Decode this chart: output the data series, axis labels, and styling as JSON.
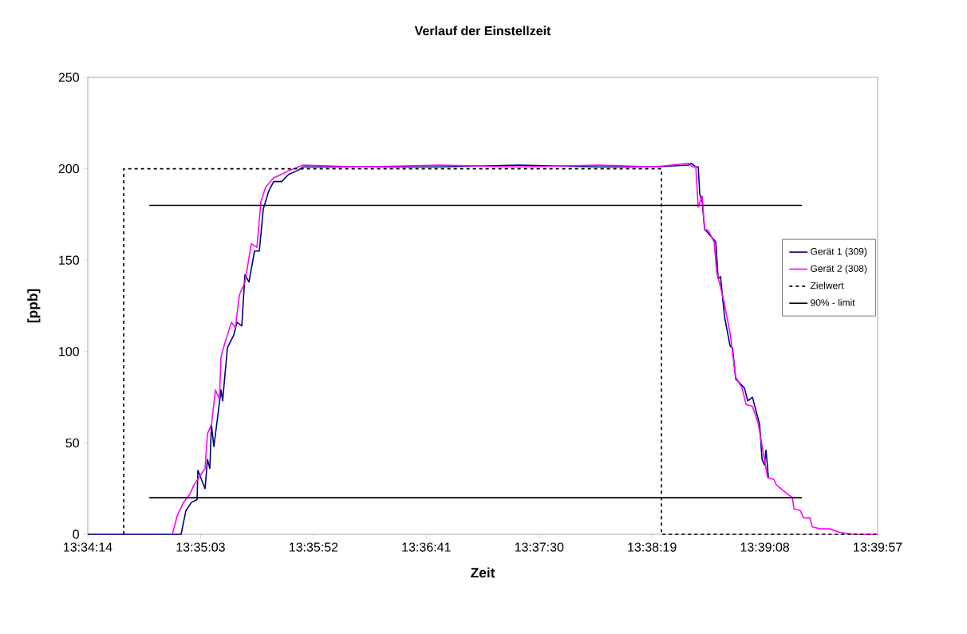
{
  "chart_data": {
    "type": "line",
    "title": "Verlauf der Einstellzeit",
    "xlabel": "Zeit",
    "ylabel": "[ppb]",
    "xlim": [
      13.570556,
      13.665833
    ],
    "ylim": [
      0,
      250
    ],
    "xticks": [
      {
        "value": 13.570556,
        "label": "13:34:14"
      },
      {
        "value": 13.584167,
        "label": "13:35:03"
      },
      {
        "value": 13.597778,
        "label": "13:35:52"
      },
      {
        "value": 13.611389,
        "label": "13:36:41"
      },
      {
        "value": 13.625,
        "label": "13:37:30"
      },
      {
        "value": 13.638611,
        "label": "13:38:19"
      },
      {
        "value": 13.652222,
        "label": "13:39:08"
      },
      {
        "value": 13.665833,
        "label": "13:39:57"
      }
    ],
    "yticks": [
      0,
      50,
      100,
      150,
      200,
      250
    ],
    "grid": false,
    "legend": "right",
    "marker": "none",
    "series": [
      {
        "name": "Gerät 1 (309)",
        "color": "#000080",
        "line_style": "solid",
        "x": [
          13.570556,
          13.581817,
          13.582395,
          13.583069,
          13.583742,
          13.583839,
          13.584705,
          13.584994,
          13.585282,
          13.585475,
          13.585764,
          13.586245,
          13.58663,
          13.586822,
          13.5874,
          13.58817,
          13.588555,
          13.589132,
          13.589517,
          13.589999,
          13.590672,
          13.59125,
          13.591731,
          13.592405,
          13.592982,
          13.593945,
          13.594811,
          13.59587,
          13.596544,
          13.603281,
          13.612906,
          13.622531,
          13.632156,
          13.638894,
          13.643032,
          13.643321,
          13.643899,
          13.644187,
          13.64438,
          13.644669,
          13.644957,
          13.646305,
          13.646594,
          13.646882,
          13.647364,
          13.648037,
          13.648326,
          13.648711,
          13.64977,
          13.650155,
          13.650732,
          13.651599,
          13.651887,
          13.652176,
          13.652369,
          13.652657
        ],
        "values": [
          0,
          0,
          13,
          17.5,
          19,
          35,
          25,
          41,
          36,
          60,
          48,
          65,
          79,
          73,
          102,
          109,
          116,
          114,
          142,
          138,
          155,
          155,
          178,
          188,
          193,
          193,
          197,
          199,
          201,
          201,
          201,
          202,
          201,
          201,
          202,
          203,
          201,
          201,
          186,
          182,
          167,
          160,
          140,
          141,
          119,
          103,
          102,
          85,
          80,
          73,
          75,
          60,
          41,
          38,
          46,
          31
        ]
      },
      {
        "name": "Gerät 2 (308)",
        "color": "#ff00ff",
        "line_style": "solid",
        "x": [
          13.580759,
          13.581336,
          13.582106,
          13.582876,
          13.583357,
          13.584705,
          13.584994,
          13.585475,
          13.585956,
          13.586437,
          13.58663,
          13.586919,
          13.587881,
          13.588362,
          13.588844,
          13.589517,
          13.590287,
          13.590961,
          13.591442,
          13.59202,
          13.592982,
          13.593945,
          13.594811,
          13.596544,
          13.603281,
          13.612906,
          13.622531,
          13.632156,
          13.638894,
          13.643032,
          13.643514,
          13.643899,
          13.644187,
          13.644669,
          13.644957,
          13.645439,
          13.646112,
          13.646401,
          13.647267,
          13.648037,
          13.648711,
          13.649481,
          13.649962,
          13.650732,
          13.651406,
          13.652561,
          13.653331,
          13.65362,
          13.654967,
          13.655545,
          13.655737,
          13.656507,
          13.656892,
          13.657662,
          13.657951,
          13.658914,
          13.660069,
          13.66132,
          13.662956,
          13.665833
        ],
        "values": [
          0,
          10,
          17.5,
          22,
          27,
          36,
          55,
          60,
          79,
          74,
          97,
          102,
          116,
          113,
          131,
          138,
          159,
          157,
          182,
          190,
          195,
          197,
          199,
          202,
          201,
          202,
          201,
          202,
          201,
          203,
          201,
          201,
          179,
          185,
          167,
          166,
          160,
          144,
          128,
          110,
          86,
          80,
          71,
          70,
          61,
          31,
          30,
          27,
          22,
          20,
          14,
          13,
          9,
          9,
          4,
          3,
          3,
          1,
          0,
          0
        ]
      },
      {
        "name": "Zielwert",
        "color": "#000000",
        "line_style": "dashed",
        "x": [
          13.574889,
          13.574889,
          13.639754,
          13.639754,
          13.665833
        ],
        "values": [
          0,
          200,
          200,
          0,
          0
        ]
      },
      {
        "name": "90% - limit",
        "color": "#000000",
        "line_style": "solid",
        "x": [
          13.577972,
          13.656696
        ],
        "values": [
          180,
          180
        ]
      },
      {
        "color": "#000000",
        "line_style": "solid",
        "x": [
          13.577972,
          13.656696
        ],
        "values": [
          20,
          20
        ]
      }
    ]
  }
}
